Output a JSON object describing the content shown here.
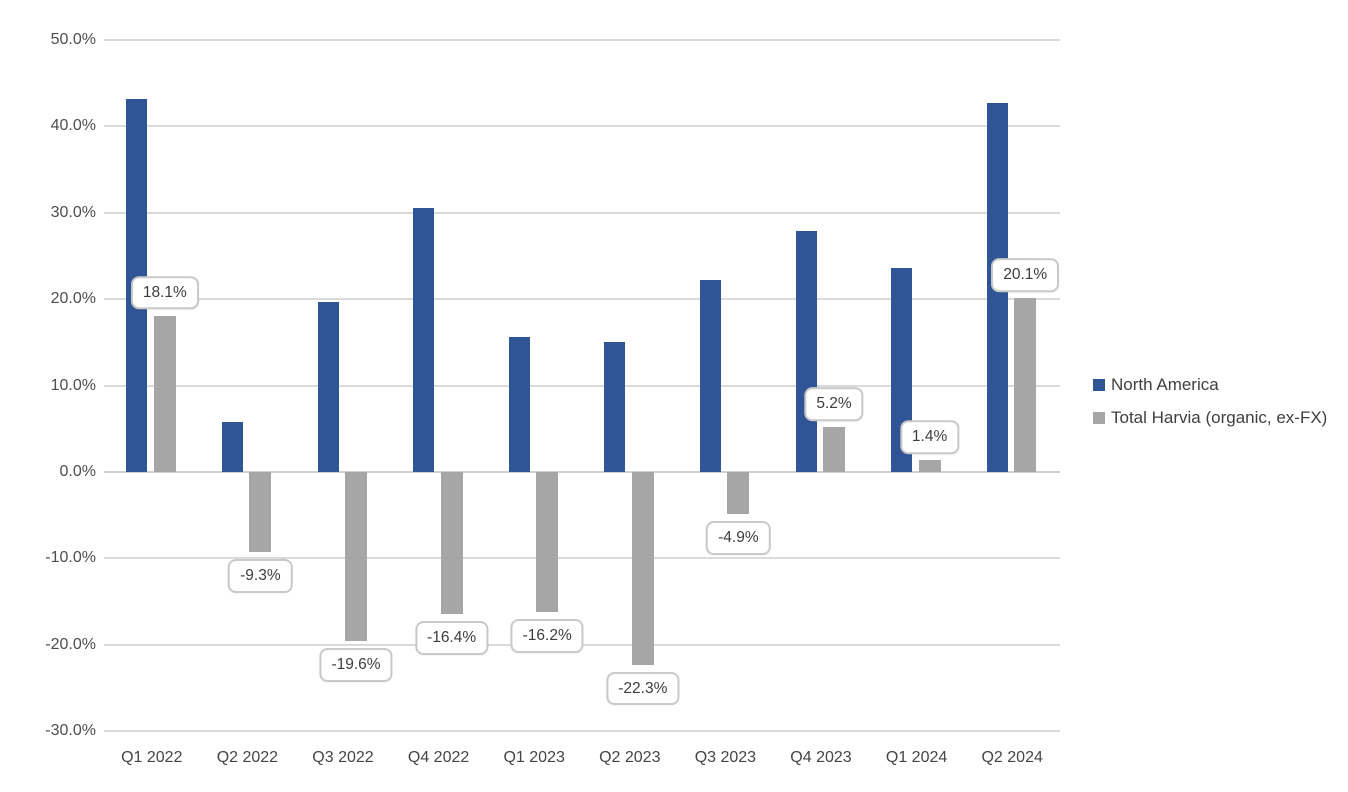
{
  "chart_data": {
    "type": "bar",
    "title": "",
    "categories": [
      "Q1 2022",
      "Q2 2022",
      "Q3 2022",
      "Q4 2022",
      "Q1 2023",
      "Q2 2023",
      "Q3 2023",
      "Q4 2023",
      "Q1 2024",
      "Q2 2024"
    ],
    "series": [
      {
        "name": "North America",
        "color": "#2F5597",
        "values": [
          43.2,
          5.8,
          19.7,
          30.6,
          15.6,
          15.0,
          22.2,
          27.9,
          23.6,
          42.7
        ],
        "data_labels": null
      },
      {
        "name": "Total Harvia (organic, ex-FX)",
        "color": "#A6A6A6",
        "values": [
          18.1,
          -9.3,
          -19.6,
          -16.4,
          -16.2,
          -22.3,
          -4.9,
          5.2,
          1.4,
          20.1
        ],
        "data_labels": [
          "18.1%",
          "-9.3%",
          "-19.6%",
          "-16.4%",
          "-16.2%",
          "-22.3%",
          "-4.9%",
          "5.2%",
          "1.4%",
          "20.1%"
        ]
      }
    ],
    "xlabel": "",
    "ylabel": "",
    "ylim": [
      -30,
      50
    ],
    "y_tick_step": 10,
    "y_tick_labels": [
      "50.0%",
      "40.0%",
      "30.0%",
      "20.0%",
      "10.0%",
      "0.0%",
      "-10.0%",
      "-20.0%",
      "-30.0%"
    ],
    "grid": true,
    "legend_position": "right",
    "data_label_box": {
      "background": "#FFFFFF",
      "border_color": "#C9C9C9",
      "text_color": "#3D3D3D"
    },
    "gridline_color": "#DADADA"
  }
}
